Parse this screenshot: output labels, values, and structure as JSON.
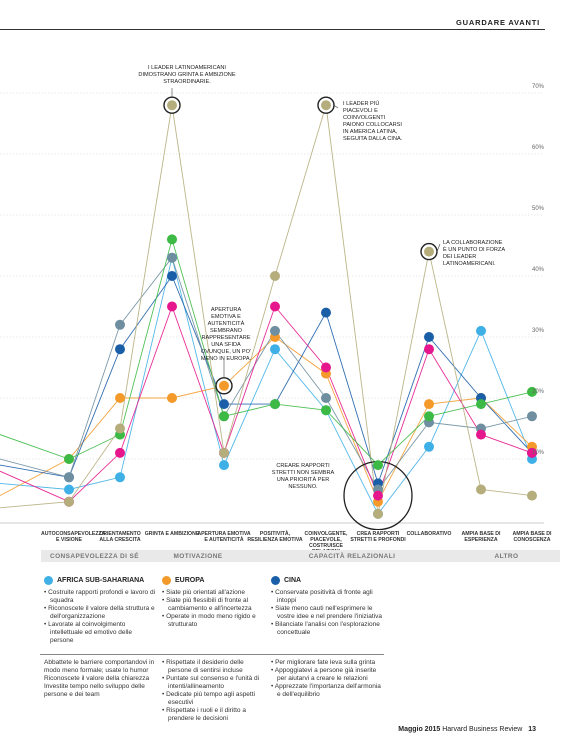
{
  "header": {
    "section": "GUARDARE AVANTI"
  },
  "chart_data": {
    "type": "line",
    "ylim": [
      0,
      70
    ],
    "y_ticks": [
      "10%",
      "20%",
      "30%",
      "40%",
      "50%",
      "60%",
      "70%"
    ],
    "categories": [
      "AUTOCONSAPEVOLEZZA E VISIONE",
      "ORIENTAMENTO ALLA CRESCITA",
      "GRINTA E AMBIZIONE",
      "APERTURA EMOTIVA E AUTENTICITÀ",
      "POSITIVITÀ, RESILIENZA EMOTIVA",
      "COINVOLGENTE, PIACEVOLE, COSTRUISCE RELAZIONI",
      "CREA RAPPORTI STRETTI E PROFONDI",
      "COLLABORATIVO",
      "AMPIA BASE DI ESPERIENZA",
      "AMPIA BASE DI CONOSCENZA"
    ],
    "groups": [
      {
        "label": "CONSAPEVOLEZZA DI SÉ",
        "span": [
          0,
          1
        ]
      },
      {
        "label": "MOTIVAZIONE",
        "span": [
          2,
          3
        ]
      },
      {
        "label": "CAPACITÀ RELAZIONALI",
        "span": [
          4,
          7
        ]
      },
      {
        "label": "ALTRO",
        "span": [
          8,
          9
        ]
      }
    ],
    "series": [
      {
        "color": "#3fb0e6",
        "start": 6,
        "values": [
          5,
          7,
          43,
          9,
          28,
          18,
          1,
          12,
          31,
          10
        ]
      },
      {
        "color": "#f39a2b",
        "start": 4,
        "values": [
          10,
          20,
          20,
          22,
          30,
          24,
          3,
          19,
          20,
          12
        ]
      },
      {
        "color": "#1b5ea8",
        "start": 9,
        "values": [
          7,
          28,
          40,
          19,
          19,
          34,
          6,
          30,
          20,
          11
        ]
      },
      {
        "color": "#6f8fa0",
        "start": 10,
        "values": [
          7,
          32,
          43,
          17,
          31,
          20,
          5,
          16,
          15,
          17
        ]
      },
      {
        "color": "#e6178c",
        "start": 8,
        "values": [
          3,
          11,
          35,
          11,
          35,
          25,
          4,
          28,
          14,
          11
        ]
      },
      {
        "color": "#3dba45",
        "start": 14,
        "values": [
          10,
          14,
          46,
          17,
          19,
          18,
          9,
          17,
          19,
          21
        ]
      },
      {
        "color": "#b5ad7c",
        "start": 2,
        "values": [
          3,
          15,
          68,
          11,
          40,
          68,
          1,
          44,
          5,
          4
        ]
      }
    ],
    "highlights": [
      {
        "series": 6,
        "point": 2
      },
      {
        "series": 6,
        "point": 5
      },
      {
        "series": 6,
        "point": 7
      },
      {
        "series": 1,
        "point": 3
      }
    ],
    "big_circle": {
      "point": 6
    },
    "annotations": {
      "grinta": "I LEADER LATINOAMERICANI DIMOSTRANO GRINTA E AMBIZIONE STRAORDINARIE.",
      "piacevoli": "I LEADER PIÙ PIACEVOLI E COINVOLGENTI PAIONO COLLOCARSI IN AMERICA LATINA, SEGUITA DALLA CINA.",
      "collaborazione": "LA COLLABORAZIONE È UN PUNTO DI FORZA DEI LEADER LATINOAMERICANI.",
      "apertura": "APERTURA EMOTIVA E AUTENTICITÀ SEMBRANO RAPPRESENTARE UNA SFIDA OVUNQUE, UN PO' MENO IN EUROPA.",
      "rapporti": "CREARE RAPPORTI STRETTI NON SEMBRA UNA PRIORITÀ PER NESSUNO."
    }
  },
  "legend": [
    {
      "label": "AFRICA SUB-SAHARIANA",
      "color": "#3fb0e6"
    },
    {
      "label": "EUROPA",
      "color": "#f39a2b"
    },
    {
      "label": "CINA",
      "color": "#1b5ea8"
    }
  ],
  "columns_top": [
    [
      "Costruite rapporti profondi e lavoro di squadra",
      "Riconoscete il valore della struttura e dell'organizzazione",
      "Lavorate al coinvolgimento intellettuale ed emotivo delle persone"
    ],
    [
      "Siate più orientati all'azione",
      "Siate più flessibili di fronte al cambiamento e all'incertezza",
      "Operate in modo meno rigido e strutturato"
    ],
    [
      "Conservate positività di fronte agli intoppi",
      "Siate meno cauti nell'esprimere le vostre idee e nel prendere l'iniziativa",
      "Bilanciate l'analisi con l'esplorazione concettuale"
    ]
  ],
  "columns_bottom": [
    [
      "Abbattete le barriere comportandovi in modo meno formale; usate lo humor",
      "Riconoscete il valore della chiarezza",
      "Investite tempo nello sviluppo delle persone e dei team"
    ],
    [
      "Rispettate il desiderio delle persone di sentirsi incluse",
      "Puntate sul consenso e l'unità di intenti/allineamento",
      "Dedicate più tempo agli aspetti esecutivi",
      "Rispettate i ruoli e il diritto a prendere le decisioni"
    ],
    [
      "Per migliorare fate leva sulla grinta",
      "Appoggiatevi a persone già inserite per aiutarvi a creare le relazioni",
      "Apprezzate l'importanza dell'armonia e dell'equilibrio"
    ]
  ],
  "footer": {
    "issue": "Maggio 2015",
    "magazine": "Harvard Business Review",
    "page": "13"
  }
}
